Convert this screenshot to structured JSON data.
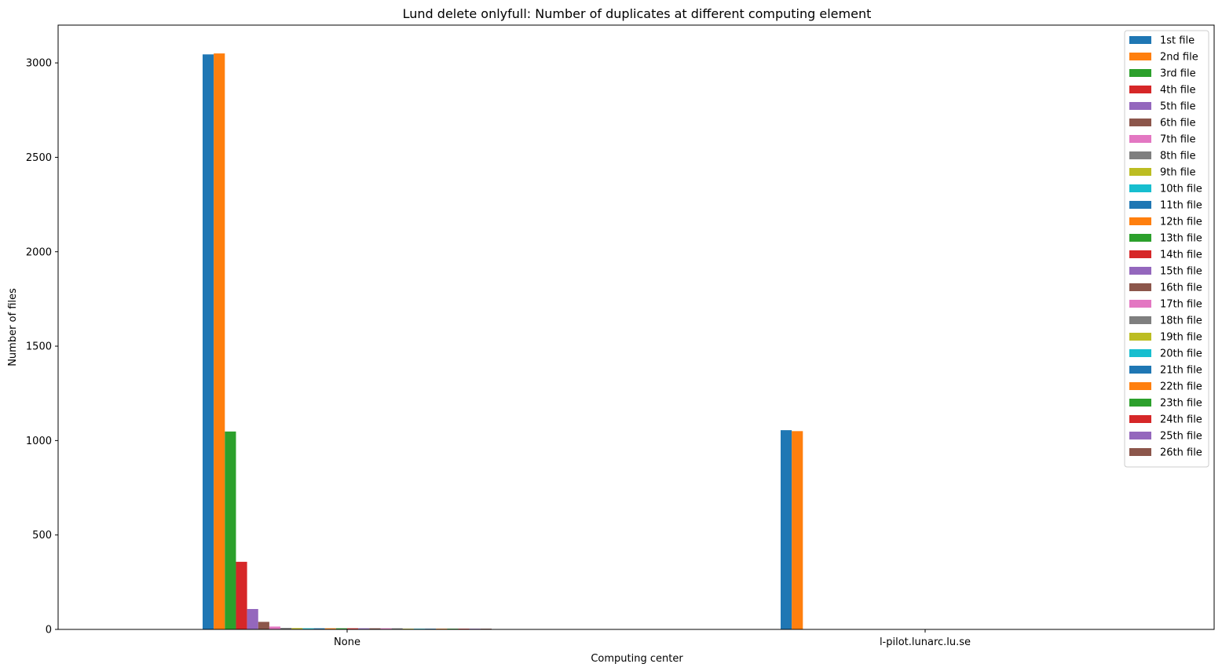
{
  "chart_data": {
    "type": "bar",
    "title": "Lund delete onlyfull: Number of duplicates at different computing element",
    "xlabel": "Computing center",
    "ylabel": "Number of files",
    "categories": [
      "None",
      "l-pilot.lunarc.lu.se"
    ],
    "ylim": [
      0,
      3200
    ],
    "yticks": [
      0,
      500,
      1000,
      1500,
      2000,
      2500,
      3000
    ],
    "grid": false,
    "legend_position": "top-right",
    "series": [
      {
        "name": "1st file",
        "color": "#1f77b4",
        "values": [
          3045,
          1055
        ]
      },
      {
        "name": "2nd file",
        "color": "#ff7f0e",
        "values": [
          3050,
          1050
        ]
      },
      {
        "name": "3rd file",
        "color": "#2ca02c",
        "values": [
          1048,
          0
        ]
      },
      {
        "name": "4th file",
        "color": "#d62728",
        "values": [
          358,
          0
        ]
      },
      {
        "name": "5th file",
        "color": "#9467bd",
        "values": [
          108,
          0
        ]
      },
      {
        "name": "6th file",
        "color": "#8c564b",
        "values": [
          40,
          0
        ]
      },
      {
        "name": "7th file",
        "color": "#e377c2",
        "values": [
          15,
          0
        ]
      },
      {
        "name": "8th file",
        "color": "#7f7f7f",
        "values": [
          8,
          0
        ]
      },
      {
        "name": "9th file",
        "color": "#bcbd22",
        "values": [
          7,
          0
        ]
      },
      {
        "name": "10th file",
        "color": "#17becf",
        "values": [
          6,
          0
        ]
      },
      {
        "name": "11th file",
        "color": "#1f77b4",
        "values": [
          6,
          0
        ]
      },
      {
        "name": "12th file",
        "color": "#ff7f0e",
        "values": [
          6,
          0
        ]
      },
      {
        "name": "13th file",
        "color": "#2ca02c",
        "values": [
          6,
          0
        ]
      },
      {
        "name": "14th file",
        "color": "#d62728",
        "values": [
          6,
          0
        ]
      },
      {
        "name": "15th file",
        "color": "#9467bd",
        "values": [
          6,
          0
        ]
      },
      {
        "name": "16th file",
        "color": "#8c564b",
        "values": [
          6,
          0
        ]
      },
      {
        "name": "17th file",
        "color": "#e377c2",
        "values": [
          6,
          0
        ]
      },
      {
        "name": "18th file",
        "color": "#7f7f7f",
        "values": [
          6,
          0
        ]
      },
      {
        "name": "19th file",
        "color": "#bcbd22",
        "values": [
          4,
          0
        ]
      },
      {
        "name": "20th file",
        "color": "#17becf",
        "values": [
          4,
          0
        ]
      },
      {
        "name": "21th file",
        "color": "#1f77b4",
        "values": [
          4,
          0
        ]
      },
      {
        "name": "22th file",
        "color": "#ff7f0e",
        "values": [
          4,
          0
        ]
      },
      {
        "name": "23th file",
        "color": "#2ca02c",
        "values": [
          4,
          0
        ]
      },
      {
        "name": "24th file",
        "color": "#d62728",
        "values": [
          4,
          0
        ]
      },
      {
        "name": "25th file",
        "color": "#9467bd",
        "values": [
          4,
          0
        ]
      },
      {
        "name": "26th file",
        "color": "#8c564b",
        "values": [
          4,
          0
        ]
      }
    ]
  }
}
